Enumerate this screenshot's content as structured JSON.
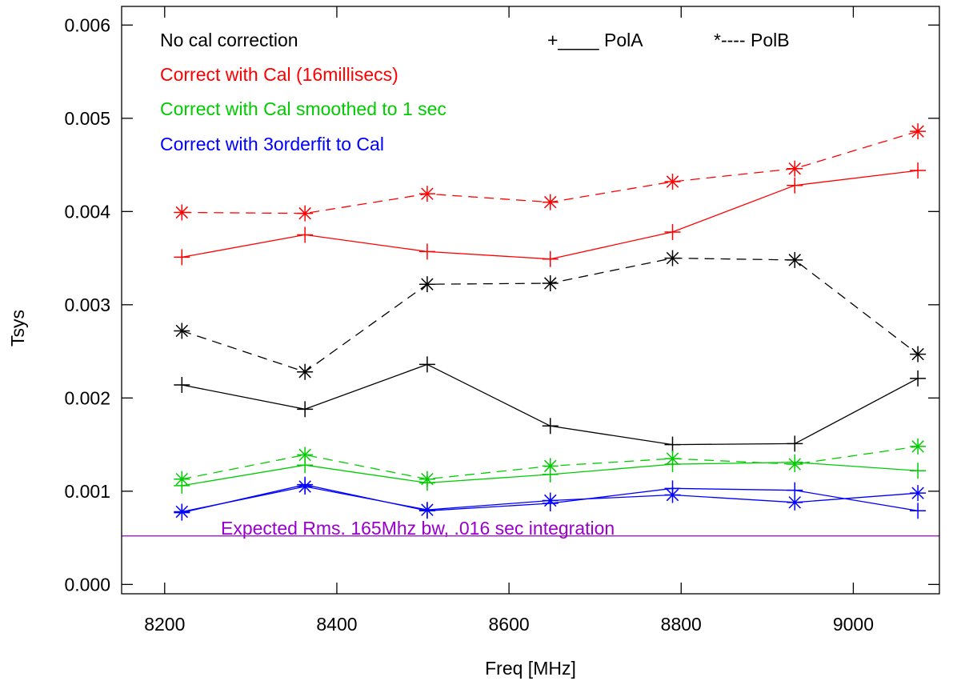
{
  "chart_data": {
    "type": "line",
    "xlabel": "Freq [MHz]",
    "ylabel": "Tsys",
    "xlim": [
      8150,
      9100
    ],
    "ylim": [
      -0.0001,
      0.0062
    ],
    "xticks": [
      8200,
      8400,
      8600,
      8800,
      9000
    ],
    "xtick_labels": [
      "8200",
      "8400",
      "8600",
      "8800",
      "9000"
    ],
    "yticks": [
      0.0,
      0.001,
      0.002,
      0.003,
      0.004,
      0.005,
      0.006
    ],
    "ytick_labels": [
      "0.000",
      "0.001",
      "0.002",
      "0.003",
      "0.004",
      "0.005",
      "0.006"
    ],
    "grid": false,
    "x": [
      8220,
      8363,
      8505,
      8648,
      8790,
      8932,
      9075
    ],
    "legend_polarization": {
      "pola": "+____ PolA",
      "polb": "*---- PolB"
    },
    "legend_groups": [
      {
        "label": "No cal correction",
        "color": "#000000"
      },
      {
        "label": "Correct with Cal (16millisecs)",
        "color": "#ff0000"
      },
      {
        "label": "Correct with Cal smoothed to 1 sec",
        "color": "#00cc00"
      },
      {
        "label": "Correct with 3orderfit to Cal",
        "color": "#0000ff"
      }
    ],
    "series": [
      {
        "color": "#000000",
        "marker": "plus",
        "dash": false,
        "values": [
          0.00214,
          0.00188,
          0.00236,
          0.0017,
          0.0015,
          0.00151,
          0.00221
        ]
      },
      {
        "color": "#000000",
        "marker": "star",
        "dash": true,
        "values": [
          0.00272,
          0.00228,
          0.00322,
          0.00323,
          0.0035,
          0.00348,
          0.00247
        ]
      },
      {
        "color": "#ff0000",
        "marker": "plus",
        "dash": false,
        "values": [
          0.00351,
          0.00375,
          0.00357,
          0.00349,
          0.00378,
          0.00428,
          0.00444
        ]
      },
      {
        "color": "#ff0000",
        "marker": "star",
        "dash": true,
        "values": [
          0.00399,
          0.00398,
          0.00419,
          0.0041,
          0.00432,
          0.00446,
          0.00486
        ]
      },
      {
        "color": "#00cc00",
        "marker": "plus",
        "dash": false,
        "values": [
          0.00106,
          0.00128,
          0.00109,
          0.00118,
          0.00129,
          0.00131,
          0.00122
        ]
      },
      {
        "color": "#00cc00",
        "marker": "star",
        "dash": true,
        "values": [
          0.00113,
          0.00139,
          0.00113,
          0.00127,
          0.00135,
          0.00129,
          0.00148
        ]
      },
      {
        "color": "#0000ff",
        "marker": "plus",
        "dash": false,
        "values": [
          0.00077,
          0.00107,
          0.00079,
          0.00087,
          0.00103,
          0.00101,
          0.00079
        ]
      },
      {
        "color": "#0000ff",
        "marker": "star",
        "dash": false,
        "values": [
          0.00078,
          0.00105,
          0.0008,
          0.0009,
          0.00096,
          0.00088,
          0.00098
        ]
      }
    ],
    "reference_line": {
      "value": 0.00052,
      "color": "#9900cc",
      "label": "Expected Rms. 165Mhz bw, .016 sec integration"
    }
  }
}
